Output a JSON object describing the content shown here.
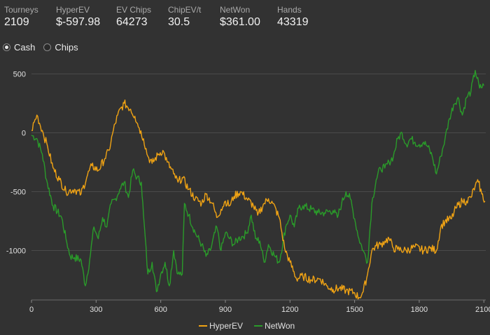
{
  "stats": [
    {
      "label": "Tourneys",
      "value": "2109"
    },
    {
      "label": "HyperEV",
      "value": "$-597.98"
    },
    {
      "label": "EV Chips",
      "value": "64273"
    },
    {
      "label": "ChipEV/t",
      "value": "30.5"
    },
    {
      "label": "NetWon",
      "value": "$361.00"
    },
    {
      "label": "Hands",
      "value": "43319"
    }
  ],
  "toggles": [
    {
      "label": "Cash",
      "checked": true
    },
    {
      "label": "Chips",
      "checked": false
    }
  ],
  "chart_data": {
    "type": "line",
    "xlim": [
      0,
      2109
    ],
    "ylim": [
      -1420,
      580
    ],
    "xticks": [
      0,
      300,
      600,
      900,
      1200,
      1500,
      1800,
      2100
    ],
    "yticks": [
      500,
      0,
      -500,
      -1000
    ],
    "grid": true,
    "legend": "bottom-center",
    "series": [
      {
        "name": "HyperEV",
        "color": "#f0a314",
        "points": [
          [
            0,
            20
          ],
          [
            25,
            150
          ],
          [
            50,
            20
          ],
          [
            75,
            -120
          ],
          [
            100,
            -300
          ],
          [
            130,
            -400
          ],
          [
            160,
            -500
          ],
          [
            200,
            -480
          ],
          [
            230,
            -520
          ],
          [
            260,
            -360
          ],
          [
            280,
            -280
          ],
          [
            310,
            -320
          ],
          [
            340,
            -220
          ],
          [
            360,
            -150
          ],
          [
            380,
            20
          ],
          [
            400,
            150
          ],
          [
            430,
            250
          ],
          [
            460,
            200
          ],
          [
            480,
            140
          ],
          [
            500,
            40
          ],
          [
            520,
            -50
          ],
          [
            540,
            -200
          ],
          [
            560,
            -260
          ],
          [
            590,
            -180
          ],
          [
            610,
            -150
          ],
          [
            630,
            -250
          ],
          [
            660,
            -350
          ],
          [
            680,
            -420
          ],
          [
            700,
            -380
          ],
          [
            730,
            -480
          ],
          [
            760,
            -560
          ],
          [
            790,
            -600
          ],
          [
            810,
            -520
          ],
          [
            840,
            -600
          ],
          [
            860,
            -720
          ],
          [
            880,
            -650
          ],
          [
            900,
            -580
          ],
          [
            920,
            -620
          ],
          [
            940,
            -540
          ],
          [
            970,
            -500
          ],
          [
            1000,
            -560
          ],
          [
            1030,
            -620
          ],
          [
            1050,
            -700
          ],
          [
            1080,
            -600
          ],
          [
            1100,
            -560
          ],
          [
            1120,
            -600
          ],
          [
            1150,
            -720
          ],
          [
            1175,
            -980
          ],
          [
            1200,
            -1100
          ],
          [
            1230,
            -1240
          ],
          [
            1260,
            -1220
          ],
          [
            1300,
            -1250
          ],
          [
            1340,
            -1240
          ],
          [
            1370,
            -1300
          ],
          [
            1400,
            -1330
          ],
          [
            1430,
            -1320
          ],
          [
            1460,
            -1340
          ],
          [
            1500,
            -1360
          ],
          [
            1520,
            -1400
          ],
          [
            1540,
            -1350
          ],
          [
            1560,
            -1200
          ],
          [
            1580,
            -1000
          ],
          [
            1600,
            -960
          ],
          [
            1620,
            -950
          ],
          [
            1640,
            -920
          ],
          [
            1660,
            -900
          ],
          [
            1680,
            -980
          ],
          [
            1700,
            -990
          ],
          [
            1740,
            -1000
          ],
          [
            1780,
            -970
          ],
          [
            1820,
            -1000
          ],
          [
            1850,
            -980
          ],
          [
            1880,
            -1000
          ],
          [
            1900,
            -800
          ],
          [
            1920,
            -750
          ],
          [
            1950,
            -730
          ],
          [
            1970,
            -640
          ],
          [
            2000,
            -580
          ],
          [
            2020,
            -580
          ],
          [
            2040,
            -550
          ],
          [
            2060,
            -450
          ],
          [
            2075,
            -420
          ],
          [
            2090,
            -520
          ],
          [
            2105,
            -580
          ]
        ]
      },
      {
        "name": "NetWon",
        "color": "#2a9b2a",
        "points": [
          [
            0,
            -20
          ],
          [
            25,
            -50
          ],
          [
            50,
            -180
          ],
          [
            70,
            -400
          ],
          [
            100,
            -620
          ],
          [
            140,
            -720
          ],
          [
            160,
            -900
          ],
          [
            180,
            -1050
          ],
          [
            200,
            -1060
          ],
          [
            230,
            -1080
          ],
          [
            250,
            -1300
          ],
          [
            270,
            -1080
          ],
          [
            290,
            -800
          ],
          [
            310,
            -900
          ],
          [
            330,
            -720
          ],
          [
            350,
            -800
          ],
          [
            370,
            -600
          ],
          [
            390,
            -560
          ],
          [
            410,
            -480
          ],
          [
            430,
            -420
          ],
          [
            450,
            -550
          ],
          [
            470,
            -320
          ],
          [
            490,
            -380
          ],
          [
            510,
            -420
          ],
          [
            520,
            -700
          ],
          [
            540,
            -1200
          ],
          [
            560,
            -1100
          ],
          [
            580,
            -1350
          ],
          [
            600,
            -1200
          ],
          [
            620,
            -1100
          ],
          [
            640,
            -1300
          ],
          [
            660,
            -1000
          ],
          [
            680,
            -1200
          ],
          [
            700,
            -1200
          ],
          [
            710,
            -600
          ],
          [
            730,
            -700
          ],
          [
            760,
            -850
          ],
          [
            790,
            -950
          ],
          [
            810,
            -1050
          ],
          [
            830,
            -1000
          ],
          [
            860,
            -800
          ],
          [
            880,
            -1000
          ],
          [
            900,
            -850
          ],
          [
            920,
            -900
          ],
          [
            940,
            -950
          ],
          [
            960,
            -900
          ],
          [
            980,
            -880
          ],
          [
            1000,
            -850
          ],
          [
            1020,
            -700
          ],
          [
            1040,
            -900
          ],
          [
            1060,
            -920
          ],
          [
            1080,
            -1100
          ],
          [
            1100,
            -950
          ],
          [
            1130,
            -1050
          ],
          [
            1150,
            -1100
          ],
          [
            1180,
            -800
          ],
          [
            1200,
            -700
          ],
          [
            1220,
            -800
          ],
          [
            1240,
            -640
          ],
          [
            1260,
            -620
          ],
          [
            1300,
            -650
          ],
          [
            1330,
            -680
          ],
          [
            1360,
            -680
          ],
          [
            1400,
            -660
          ],
          [
            1420,
            -720
          ],
          [
            1440,
            -600
          ],
          [
            1460,
            -500
          ],
          [
            1480,
            -560
          ],
          [
            1500,
            -730
          ],
          [
            1520,
            -900
          ],
          [
            1540,
            -1000
          ],
          [
            1560,
            -1100
          ],
          [
            1580,
            -600
          ],
          [
            1600,
            -400
          ],
          [
            1620,
            -300
          ],
          [
            1640,
            -300
          ],
          [
            1660,
            -250
          ],
          [
            1680,
            -200
          ],
          [
            1700,
            -50
          ],
          [
            1720,
            0
          ],
          [
            1740,
            -100
          ],
          [
            1760,
            -50
          ],
          [
            1780,
            -80
          ],
          [
            1800,
            -100
          ],
          [
            1820,
            -80
          ],
          [
            1840,
            -120
          ],
          [
            1860,
            -200
          ],
          [
            1880,
            -350
          ],
          [
            1900,
            -200
          ],
          [
            1920,
            -50
          ],
          [
            1940,
            120
          ],
          [
            1960,
            240
          ],
          [
            1980,
            300
          ],
          [
            2000,
            150
          ],
          [
            2020,
            300
          ],
          [
            2040,
            350
          ],
          [
            2060,
            530
          ],
          [
            2080,
            380
          ],
          [
            2100,
            400
          ]
        ]
      }
    ]
  }
}
